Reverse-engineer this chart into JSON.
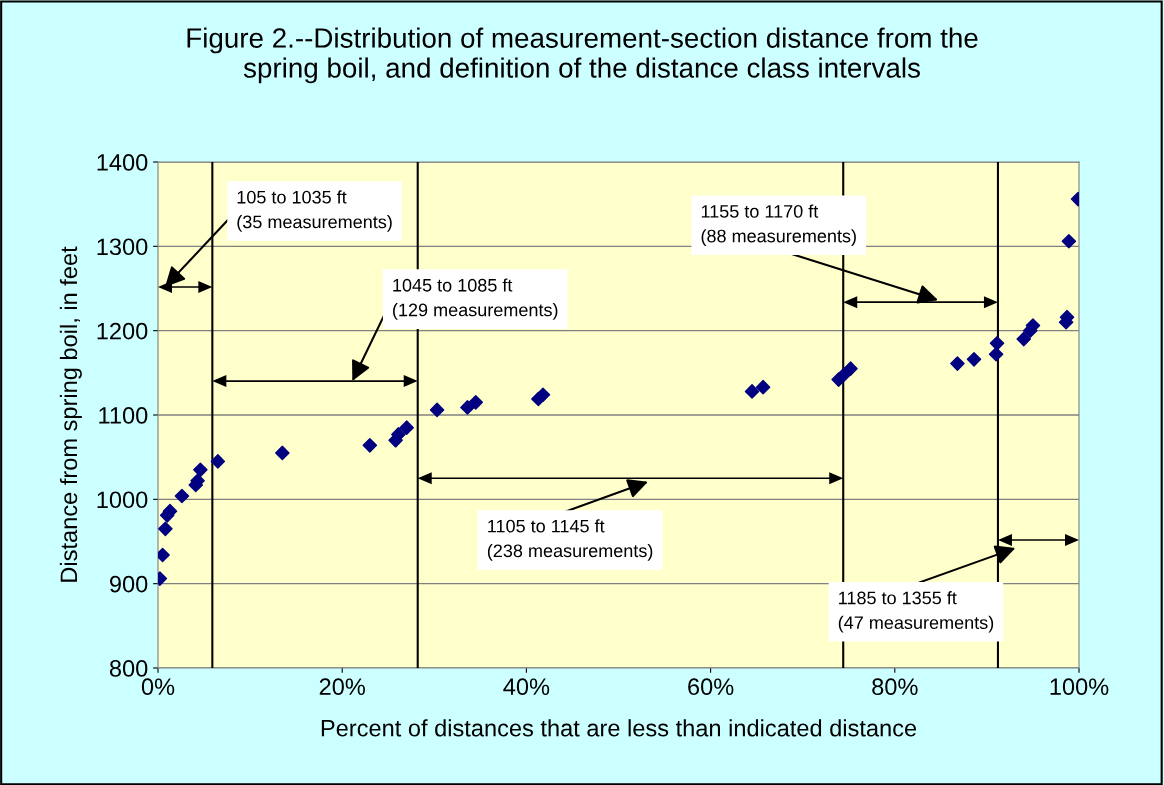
{
  "chart_data": {
    "type": "scatter",
    "title": "Figure 2.--Distribution of measurement-section distance from the spring boil, and definition of the distance class intervals",
    "xlabel": "Percent of distances that are less than indicated distance",
    "ylabel": "Distance from spring boil, in feet",
    "x": [
      0.2,
      0.5,
      0.8,
      1.0,
      1.3,
      2.6,
      4.1,
      4.3,
      4.6,
      6.5,
      13.5,
      23.0,
      25.8,
      26.1,
      27.0,
      30.3,
      33.6,
      34.5,
      41.3,
      41.8,
      64.5,
      65.7,
      73.9,
      74.5,
      75.2,
      86.8,
      88.6,
      91.0,
      91.1,
      94.0,
      94.7,
      95.0,
      98.6,
      98.7,
      98.9,
      99.9
    ],
    "series": [
      {
        "color": "#000080",
        "values": [
          906,
          934,
          965,
          981,
          986,
          1004,
          1017,
          1022,
          1035,
          1045,
          1055,
          1064,
          1070,
          1077,
          1085,
          1106,
          1109,
          1115,
          1119,
          1124,
          1128,
          1133,
          1142,
          1148,
          1155,
          1161,
          1166,
          1172,
          1185,
          1190,
          1200,
          1206,
          1210,
          1216,
          1306,
          1356
        ]
      }
    ],
    "marker": "diamond",
    "xlim": [
      0,
      100
    ],
    "ylim": [
      800,
      1400
    ],
    "xticks": [
      {
        "value": 0,
        "label": "0%"
      },
      {
        "value": 20,
        "label": "20%"
      },
      {
        "value": 40,
        "label": "40%"
      },
      {
        "value": 60,
        "label": "60%"
      },
      {
        "value": 80,
        "label": "80%"
      },
      {
        "value": 100,
        "label": "100%"
      }
    ],
    "yticks": [
      800,
      900,
      1000,
      1100,
      1200,
      1300,
      1400
    ],
    "grid": "y",
    "ref_lines": [
      {
        "axis": "x",
        "value": 5.9,
        "color": "#000000"
      },
      {
        "axis": "x",
        "value": 28.2,
        "color": "#000000"
      },
      {
        "axis": "x",
        "value": 74.4,
        "color": "#000000"
      },
      {
        "axis": "x",
        "value": 91.2,
        "color": "#000000"
      }
    ],
    "annotations": [
      "105 to 1035 ft\n(35 measurements)",
      "1045 to 1085 ft\n(129 measurements)",
      "1105 to 1145 ft\n(238 measurements)",
      "1155 to 1170 ft\n(88 measurements)",
      "1185 to 1355 ft\n(47 measurements)"
    ]
  }
}
